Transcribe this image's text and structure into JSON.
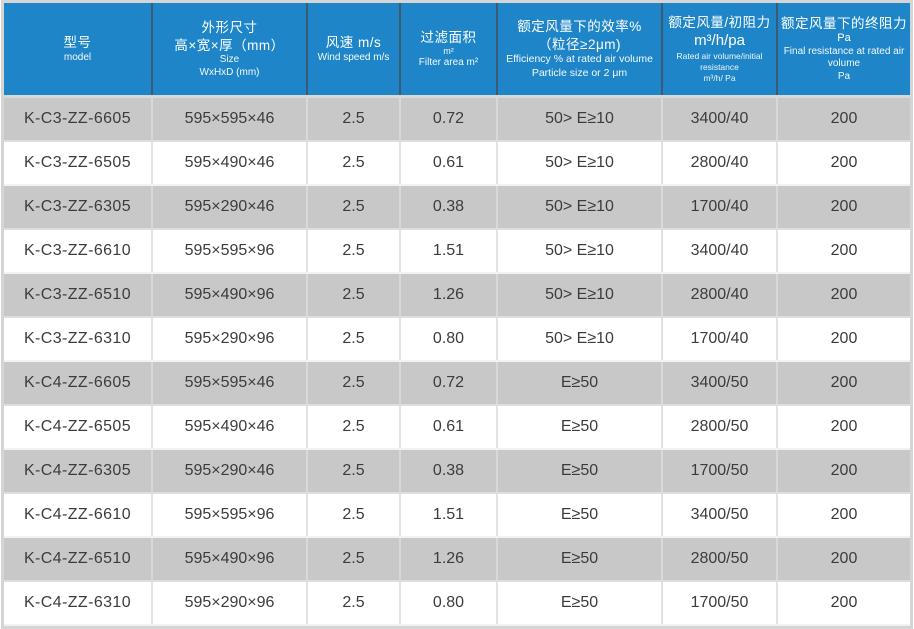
{
  "colors": {
    "header_background": "#1e86c8",
    "header_text": "#ffffff",
    "header_divider": "#3d5a73",
    "row_stripe_gray": "#c8c8c8",
    "row_stripe_white": "#ffffff",
    "body_text": "#3c3c3c",
    "outer_frame": "#d5d5d5"
  },
  "table": {
    "columns": [
      {
        "id": "model",
        "lines": [
          {
            "t": "型号",
            "cls": "h-cn"
          },
          {
            "t": "model",
            "cls": "h-en"
          }
        ]
      },
      {
        "id": "size",
        "lines": [
          {
            "t": "外形尺寸",
            "cls": "h-cn"
          },
          {
            "t": "高×宽×厚（mm）",
            "cls": "h-cn"
          },
          {
            "t": "Size",
            "cls": "h-en"
          },
          {
            "t": "WxHxD (mm)",
            "cls": "h-en"
          }
        ]
      },
      {
        "id": "wind-speed",
        "lines": [
          {
            "t": "风速 m/s",
            "cls": "h-cn"
          },
          {
            "t": "Wind speed m/s",
            "cls": "h-en"
          }
        ]
      },
      {
        "id": "filter-area",
        "lines": [
          {
            "t": "过滤面积",
            "cls": "h-cn"
          },
          {
            "t": "m²",
            "cls": "h-sub"
          },
          {
            "t": "Filter area m²",
            "cls": "h-en"
          }
        ]
      },
      {
        "id": "efficiency",
        "lines": [
          {
            "t": "额定风量下的效率%",
            "cls": "h-cn"
          },
          {
            "t": "（粒径≥2μm)",
            "cls": "h-cn"
          },
          {
            "t": "Efficiency % at rated air volume",
            "cls": "h-en-md"
          },
          {
            "t": "Particle size or 2 μm",
            "cls": "h-en-md"
          }
        ]
      },
      {
        "id": "rated-volume",
        "lines": [
          {
            "t": "额定风量/初阻力",
            "cls": "h-cn"
          },
          {
            "t": "m³/h/pa",
            "cls": "h-big"
          },
          {
            "t": "Rated air volume/initial resistance",
            "cls": "h-tiny"
          },
          {
            "t": "m³/h/ Pa",
            "cls": "h-tiny"
          }
        ]
      },
      {
        "id": "final-resistance",
        "lines": [
          {
            "t": "额定风量下的终阻力",
            "cls": "h-cn"
          },
          {
            "t": "Pa",
            "cls": "h-md"
          },
          {
            "t": "Final resistance at rated air volume",
            "cls": "h-en"
          },
          {
            "t": "Pa",
            "cls": "h-en"
          }
        ]
      }
    ],
    "rows": [
      [
        "K-C3-ZZ-6605",
        "595×595×46",
        "2.5",
        "0.72",
        "50> E≥10",
        "3400/40",
        "200"
      ],
      [
        "K-C3-ZZ-6505",
        "595×490×46",
        "2.5",
        "0.61",
        "50> E≥10",
        "2800/40",
        "200"
      ],
      [
        "K-C3-ZZ-6305",
        "595×290×46",
        "2.5",
        "0.38",
        "50> E≥10",
        "1700/40",
        "200"
      ],
      [
        "K-C3-ZZ-6610",
        "595×595×96",
        "2.5",
        "1.51",
        "50> E≥10",
        "3400/40",
        "200"
      ],
      [
        "K-C3-ZZ-6510",
        "595×490×96",
        "2.5",
        "1.26",
        "50> E≥10",
        "2800/40",
        "200"
      ],
      [
        "K-C3-ZZ-6310",
        "595×290×96",
        "2.5",
        "0.80",
        "50> E≥10",
        "1700/40",
        "200"
      ],
      [
        "K-C4-ZZ-6605",
        "595×595×46",
        "2.5",
        "0.72",
        "E≥50",
        "3400/50",
        "200"
      ],
      [
        "K-C4-ZZ-6505",
        "595×490×46",
        "2.5",
        "0.61",
        "E≥50",
        "2800/50",
        "200"
      ],
      [
        "K-C4-ZZ-6305",
        "595×290×46",
        "2.5",
        "0.38",
        "E≥50",
        "1700/50",
        "200"
      ],
      [
        "K-C4-ZZ-6610",
        "595×595×96",
        "2.5",
        "1.51",
        "E≥50",
        "3400/50",
        "200"
      ],
      [
        "K-C4-ZZ-6510",
        "595×490×96",
        "2.5",
        "1.26",
        "E≥50",
        "2800/50",
        "200"
      ],
      [
        "K-C4-ZZ-6310",
        "595×290×96",
        "2.5",
        "0.80",
        "E≥50",
        "1700/50",
        "200"
      ]
    ]
  }
}
